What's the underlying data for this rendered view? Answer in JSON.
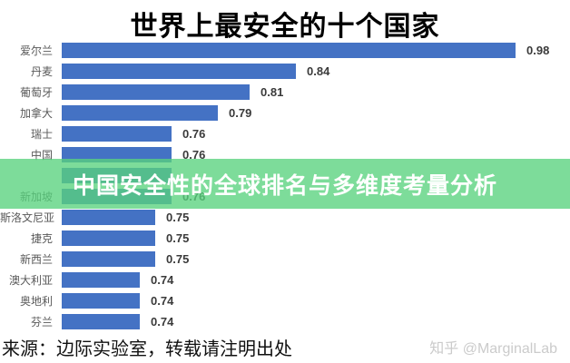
{
  "title": "世界上最安全的十个国家",
  "overlay": {
    "text": "中国安全性的全球排名与多维度考量分析",
    "bg_color": "#58D27D",
    "text_color": "#FFFFFF"
  },
  "chart_data": {
    "type": "bar",
    "orientation": "horizontal",
    "title": "世界上最安全的十个国家",
    "categories": [
      "爱尔兰",
      "丹麦",
      "葡萄牙",
      "加拿大",
      "瑞士",
      "中国",
      "",
      "新加坡",
      "斯洛文尼亚",
      "捷克",
      "新西兰",
      "澳大利亚",
      "奥地利",
      "芬兰"
    ],
    "values": [
      0.98,
      0.84,
      0.81,
      0.79,
      0.76,
      0.76,
      0.76,
      0.76,
      0.75,
      0.75,
      0.75,
      0.74,
      0.74,
      0.74
    ],
    "value_labels": [
      "0.98",
      "0.84",
      "0.81",
      "0.79",
      "0.76",
      "0.76",
      "",
      "0.76",
      "0.75",
      "0.75",
      "0.75",
      "0.74",
      "0.74",
      "0.74"
    ],
    "xlim": [
      0.69,
      1.0
    ],
    "bar_color": "#4472C4",
    "grid": false,
    "legend": false,
    "note": "row index 6 has its label and value hidden behind the green overlay banner; its bar is faintly visible through the overlay"
  },
  "footer": {
    "source": "来源：边际实验室，转载请注明出处",
    "watermark": "知乎 @MarginalLab"
  }
}
